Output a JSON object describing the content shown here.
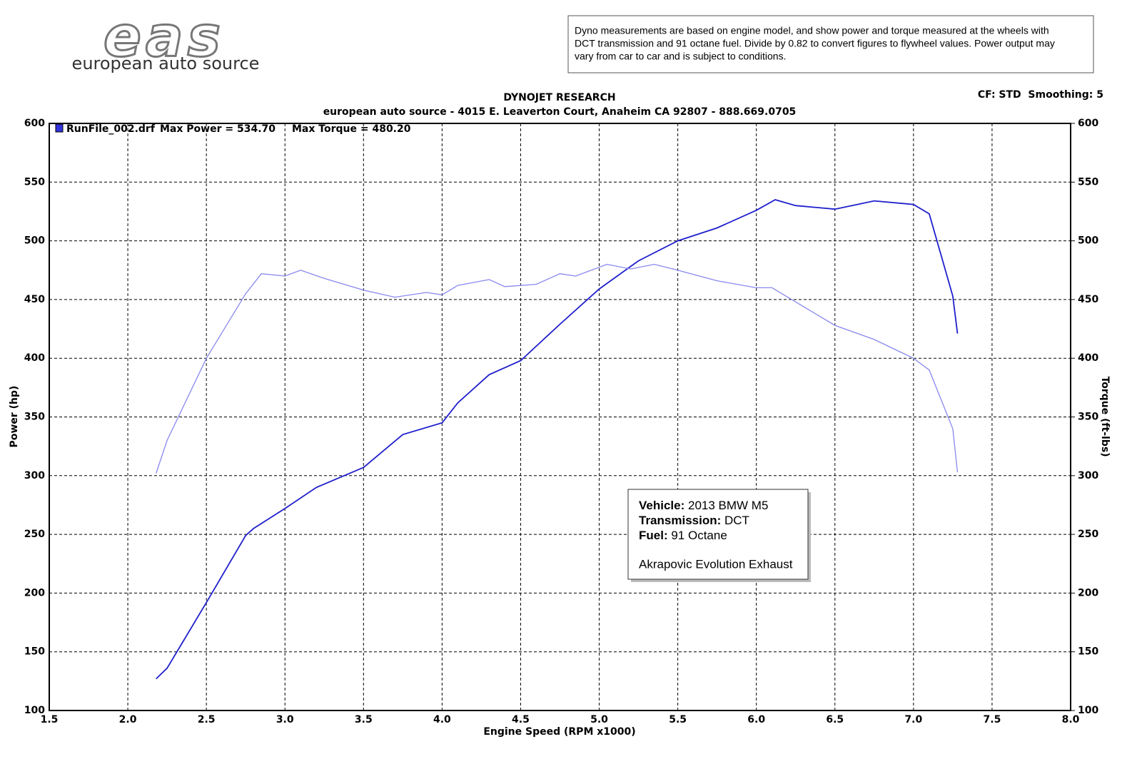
{
  "logo": {
    "mark": "eas",
    "name": "european auto source"
  },
  "note": [
    "Dyno measurements are based on engine model, and show power and torque measured at the wheels with",
    "DCT transmission and 91 octane fuel. Divide by 0.82 to convert figures to flywheel values. Power output may",
    "vary from car to car and is subject to conditions."
  ],
  "chart_data": {
    "type": "line",
    "title": "DYNOJET RESEARCH",
    "subtitle": "european auto source - 4015 E. Leaverton Court, Anaheim CA 92807 - 888.669.0705",
    "corner_note": "CF: STD  Smoothing: 5",
    "legend": {
      "file": "RunFile_002.drf",
      "max_power": "Max Power = 534.70",
      "max_torque": "Max Torque = 480.20"
    },
    "xlabel": "Engine Speed (RPM x1000)",
    "ylabel": "Power (hp)",
    "y2label": "Torque (ft-lbs)",
    "xlim": [
      1.5,
      8.0
    ],
    "xticks": [
      1.5,
      {
        "value": 2,
        "label": "2.0"
      },
      2.5,
      {
        "value": 3,
        "label": "3.0"
      },
      3.5,
      {
        "value": 4,
        "label": "4.0"
      },
      4.5,
      {
        "value": 5,
        "label": "5.0"
      },
      5.5,
      {
        "value": 6,
        "label": "6.0"
      },
      6.5,
      {
        "value": 7,
        "label": "7.0"
      },
      7.5,
      {
        "value": 8,
        "label": "8.0"
      }
    ],
    "ylim": [
      100,
      600
    ],
    "yticks": [
      100,
      150,
      200,
      250,
      300,
      350,
      400,
      450,
      500,
      550,
      600
    ],
    "y2lim": [
      100,
      600
    ],
    "y2ticks": [
      100,
      150,
      200,
      250,
      300,
      350,
      400,
      450,
      500,
      550,
      600
    ],
    "grid": true,
    "series": [
      {
        "name": "Power",
        "color": "#1f1fcc",
        "x": [
          2.18,
          2.25,
          2.5,
          2.75,
          2.8,
          3.0,
          3.2,
          3.5,
          3.75,
          4.0,
          4.1,
          4.3,
          4.5,
          4.75,
          5.0,
          5.25,
          5.5,
          5.75,
          6.0,
          6.12,
          6.25,
          6.5,
          6.75,
          7.0,
          7.1,
          7.25,
          7.28
        ],
        "values": [
          127,
          136,
          192,
          249,
          255,
          272,
          290,
          307,
          335,
          345,
          362,
          386,
          398,
          429,
          459,
          483,
          500,
          511,
          526,
          535,
          530,
          527,
          534,
          531,
          523,
          453,
          421
        ]
      },
      {
        "name": "Torque",
        "color": "#8888ee",
        "axis": "y2",
        "x": [
          2.18,
          2.25,
          2.5,
          2.75,
          2.85,
          3.0,
          3.1,
          3.25,
          3.5,
          3.7,
          3.9,
          4.0,
          4.1,
          4.3,
          4.4,
          4.6,
          4.75,
          4.85,
          5.05,
          5.2,
          5.35,
          5.5,
          5.75,
          6.0,
          6.1,
          6.25,
          6.5,
          6.75,
          7.0,
          7.1,
          7.25,
          7.28
        ],
        "values": [
          302,
          330,
          400,
          455,
          472,
          470,
          475,
          468,
          458,
          452,
          456,
          454,
          462,
          467,
          461,
          463,
          472,
          470,
          480,
          476,
          480,
          475,
          466,
          460,
          460,
          448,
          428,
          416,
          400,
          390,
          340,
          303
        ]
      }
    ]
  },
  "info_box": {
    "rows": [
      {
        "label": "Vehicle:",
        "value": "2013 BMW M5"
      },
      {
        "label": "Transmission:",
        "value": "DCT"
      },
      {
        "label": "Fuel:",
        "value": "91 Octane"
      }
    ],
    "extra": "Akrapovic Evolution Exhaust"
  }
}
